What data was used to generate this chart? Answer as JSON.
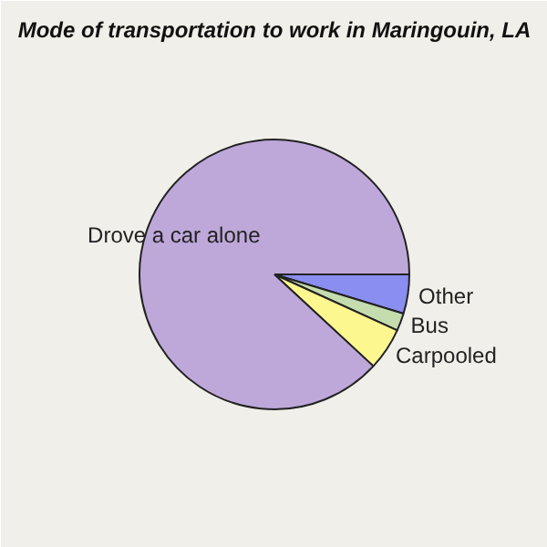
{
  "chart_data": {
    "type": "pie",
    "title": "Mode of transportation to work in Maringouin, LA",
    "categories": [
      "Other",
      "Bus",
      "Carpooled",
      "Drove a car alone"
    ],
    "values": [
      4.7,
      2.1,
      5.1,
      88.1
    ],
    "colors": [
      "#8a8ef0",
      "#c4dcae",
      "#fdf78f",
      "#bea8da"
    ]
  }
}
